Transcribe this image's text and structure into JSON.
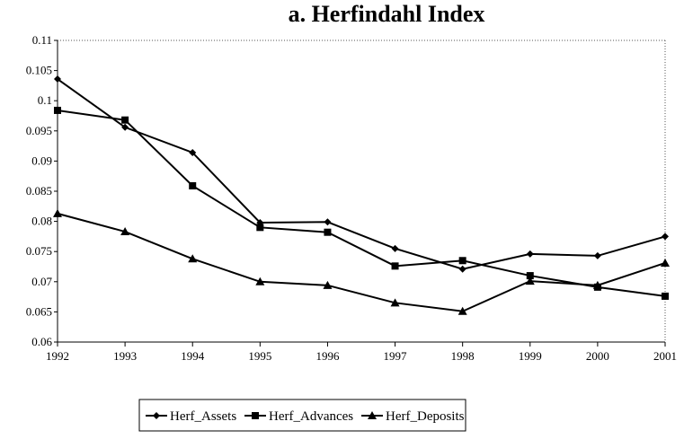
{
  "chart_data": {
    "type": "line",
    "title": "a. Herfindahl Index",
    "categories": [
      "1992",
      "1993",
      "1994",
      "1995",
      "1996",
      "1997",
      "1998",
      "1999",
      "2000",
      "2001"
    ],
    "series": [
      {
        "name": "Herf_Assets",
        "color": "#000000",
        "marker": "diamond",
        "values": [
          0.1036,
          0.0956,
          0.0914,
          0.0798,
          0.0799,
          0.0755,
          0.0721,
          0.0746,
          0.0743,
          0.0775
        ]
      },
      {
        "name": "Herf_Advances",
        "color": "#000000",
        "marker": "square",
        "values": [
          0.0984,
          0.0968,
          0.0859,
          0.079,
          0.0782,
          0.0726,
          0.0735,
          0.071,
          0.0691,
          0.0676
        ]
      },
      {
        "name": "Herf_Deposits",
        "color": "#000000",
        "marker": "triangle",
        "values": [
          0.0813,
          0.0783,
          0.0738,
          0.07,
          0.0694,
          0.0665,
          0.0651,
          0.0701,
          0.0694,
          0.0731
        ]
      }
    ],
    "ylim": [
      0.06,
      0.11
    ],
    "yticks": [
      0.06,
      0.065,
      0.07,
      0.075,
      0.08,
      0.085,
      0.09,
      0.095,
      0.1,
      0.105,
      0.11
    ],
    "grid": false,
    "legend": "bottom"
  }
}
